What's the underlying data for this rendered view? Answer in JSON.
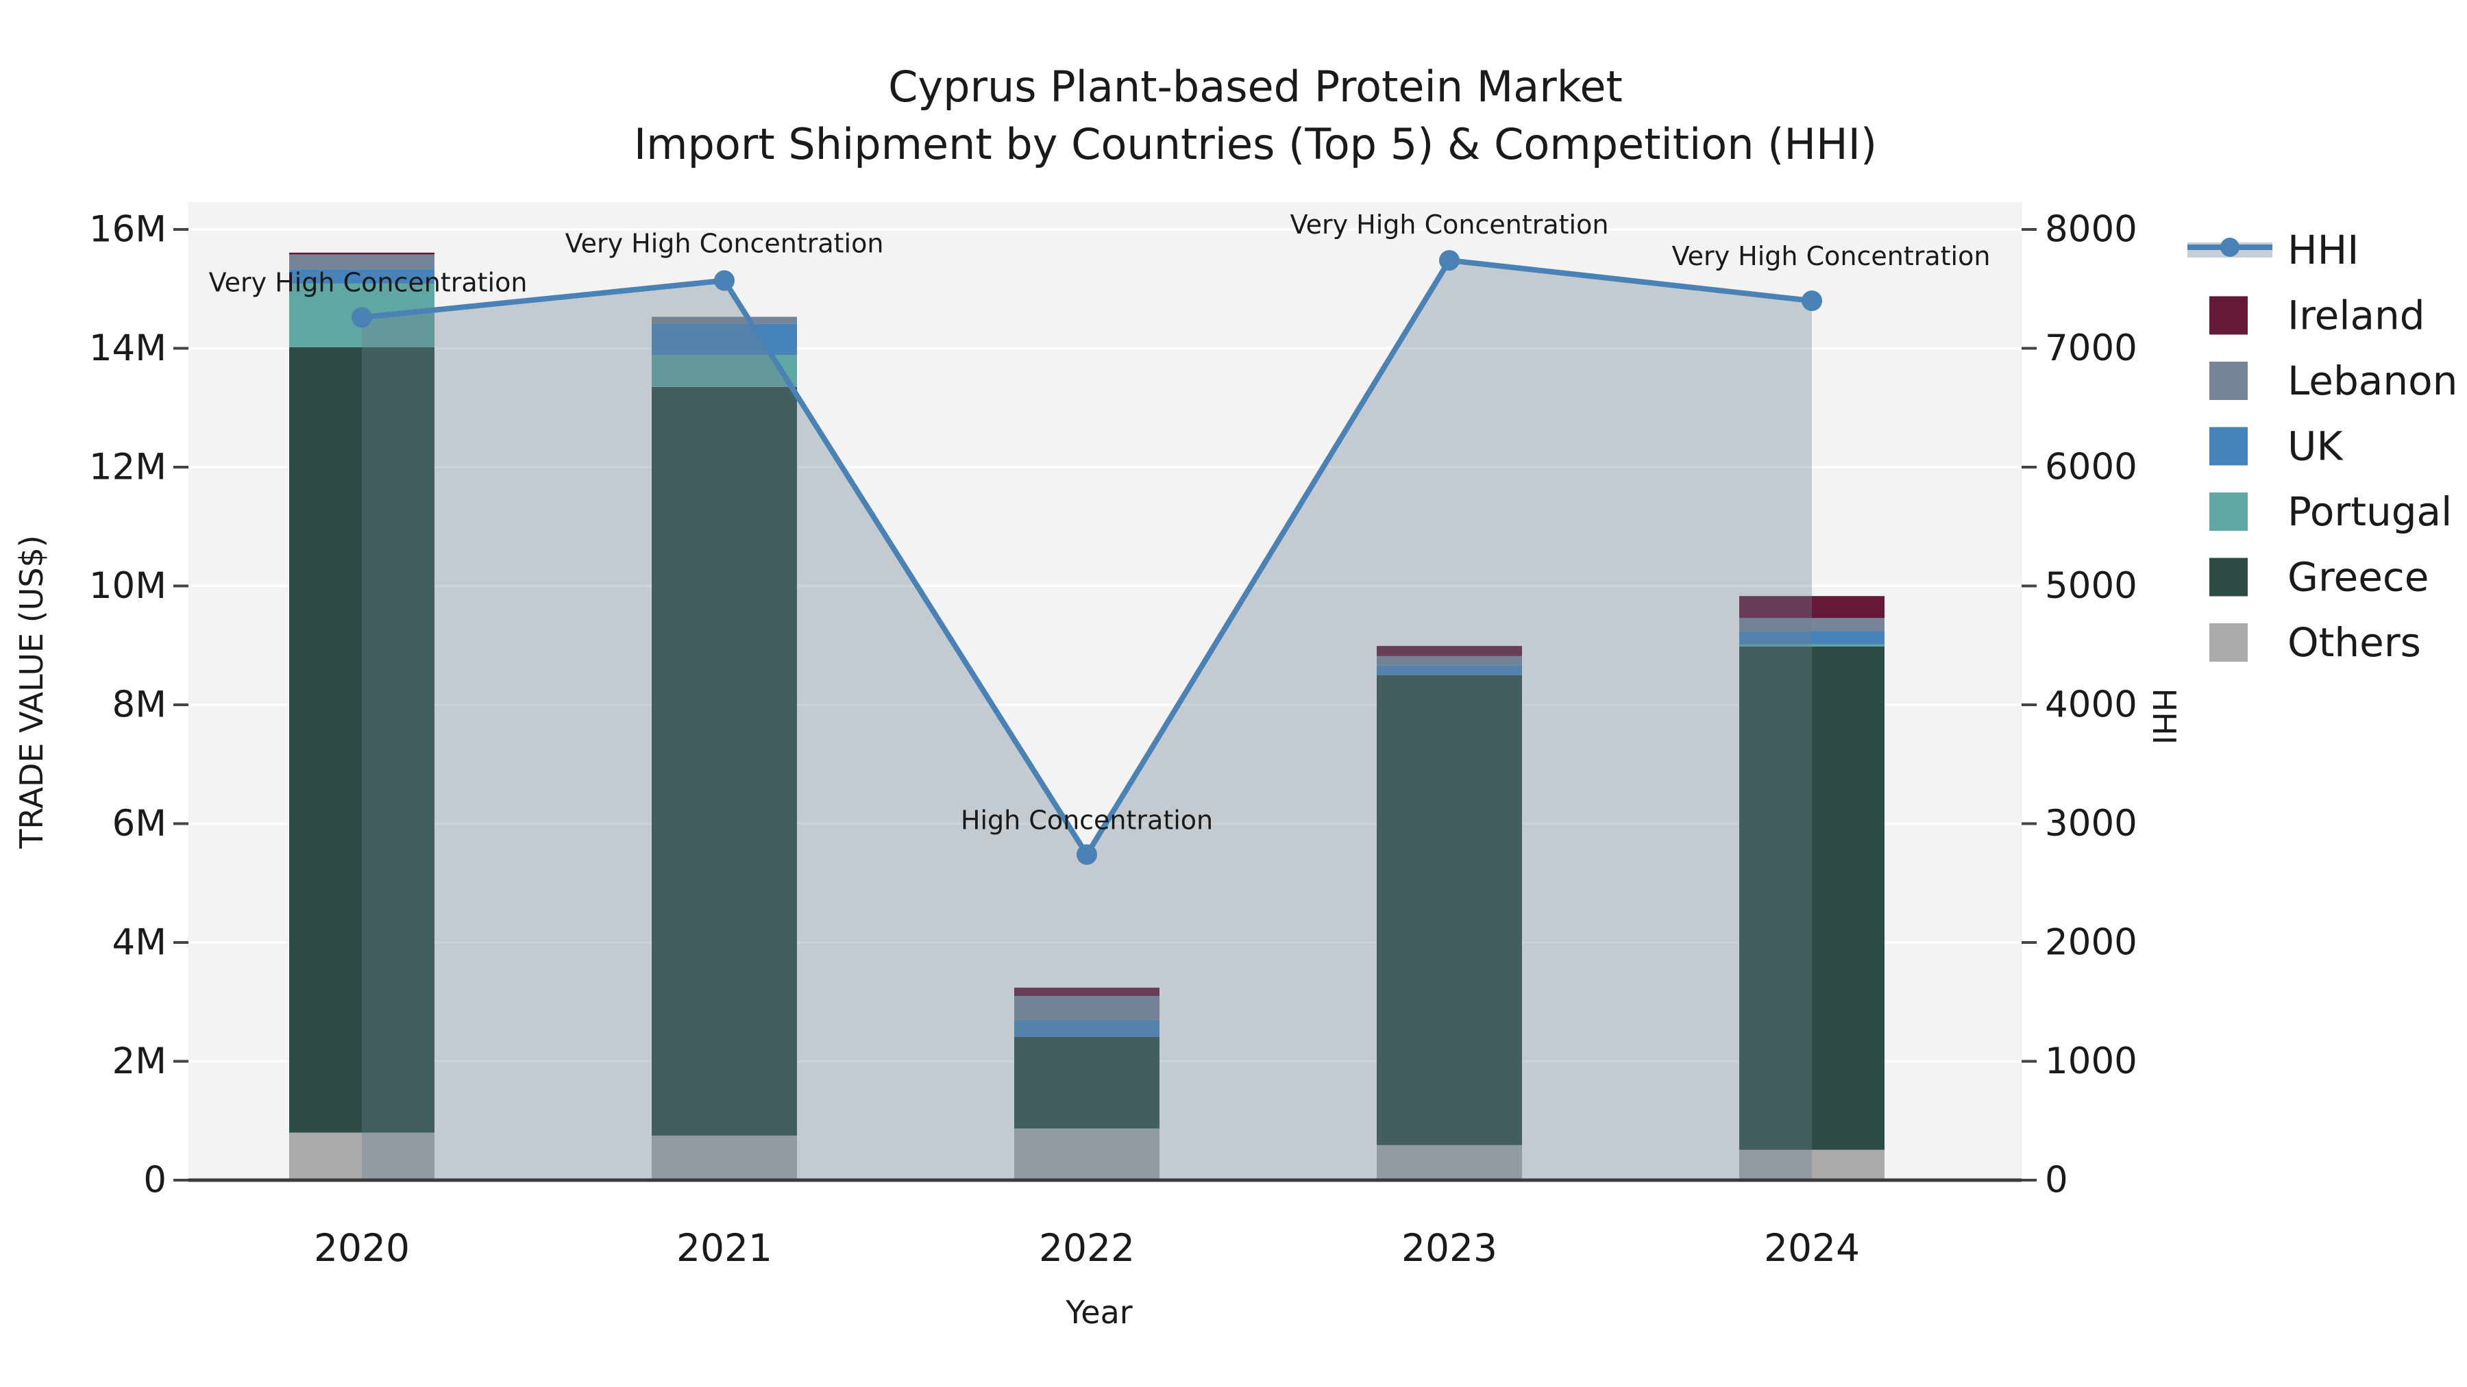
{
  "title": {
    "line1": "Cyprus Plant-based Protein Market",
    "line2": "Import Shipment by Countries (Top 5) & Competition (HHI)"
  },
  "axes": {
    "x_label": "Year",
    "y_left_label": "TRADE VALUE (US$)",
    "y_right_label": "HHI",
    "x_ticks": [
      "2020",
      "2021",
      "2022",
      "2023",
      "2024"
    ],
    "y_left_ticks": [
      "0",
      "2M",
      "4M",
      "6M",
      "8M",
      "10M",
      "12M",
      "14M",
      "16M"
    ],
    "y_left_tick_values": [
      0,
      2000000,
      4000000,
      6000000,
      8000000,
      10000000,
      12000000,
      14000000,
      16000000
    ],
    "y_right_ticks": [
      "0",
      "1000",
      "2000",
      "3000",
      "4000",
      "5000",
      "6000",
      "7000",
      "8000"
    ],
    "y_right_tick_values": [
      0,
      1000,
      2000,
      3000,
      4000,
      5000,
      6000,
      7000,
      8000
    ],
    "y_left_max": 16000000,
    "y_right_max": 8000
  },
  "colors": {
    "figure_bg": "#ffffff",
    "plot_bg": "#f3f3f3",
    "gridline": "#ffffff",
    "spine": "#3b3b3b",
    "tick_mark": "#444444",
    "hhi_line": "#4a82b6",
    "hhi_area": "rgba(109,130,142,0.35)",
    "hhi_band_sample": "#c7ced9",
    "ireland": "#651939",
    "lebanon": "#76859a",
    "uk": "#4583ba",
    "portugal": "#60a6a2",
    "greece": "#2d4c46",
    "others": "#aaaaaa"
  },
  "legend": {
    "items": [
      {
        "label": "HHI",
        "type": "line",
        "color": "#4a82b6"
      },
      {
        "label": "Ireland",
        "type": "patch",
        "color": "#651939"
      },
      {
        "label": "Lebanon",
        "type": "patch",
        "color": "#76859a"
      },
      {
        "label": "UK",
        "type": "patch",
        "color": "#4583ba"
      },
      {
        "label": "Portugal",
        "type": "patch",
        "color": "#60a6a2"
      },
      {
        "label": "Greece",
        "type": "patch",
        "color": "#2d4c46"
      },
      {
        "label": "Others",
        "type": "patch",
        "color": "#aaaaaa"
      }
    ]
  },
  "chart_data": {
    "type": "bar+line",
    "title": "Cyprus Plant-based Protein Market — Import Shipment by Countries (Top 5) & Competition (HHI)",
    "xlabel": "Year",
    "ylabel_left": "TRADE VALUE (US$)",
    "ylabel_right": "HHI",
    "ylim_left": [
      0,
      16000000
    ],
    "ylim_right": [
      0,
      8000
    ],
    "grid": true,
    "legend_position": "right",
    "categories": [
      "2020",
      "2021",
      "2022",
      "2023",
      "2024"
    ],
    "series": [
      {
        "name": "Others",
        "color": "#aaaaaa",
        "values": [
          800000,
          750000,
          870000,
          590000,
          510000
        ]
      },
      {
        "name": "Greece",
        "color": "#2d4c46",
        "values": [
          13220000,
          12600000,
          1540000,
          7910000,
          8470000
        ]
      },
      {
        "name": "Portugal",
        "color": "#60a6a2",
        "values": [
          1070000,
          540000,
          0,
          0,
          40000
        ]
      },
      {
        "name": "UK",
        "color": "#4583ba",
        "values": [
          240000,
          520000,
          290000,
          160000,
          220000
        ]
      },
      {
        "name": "Lebanon",
        "color": "#76859a",
        "values": [
          250000,
          120000,
          400000,
          160000,
          220000
        ]
      },
      {
        "name": "Ireland",
        "color": "#651939",
        "values": [
          30000,
          0,
          140000,
          170000,
          370000
        ]
      }
    ],
    "bar_totals": [
      15610000,
      14530000,
      3240000,
      8990000,
      9830000
    ],
    "hhi_line": {
      "name": "HHI",
      "color": "#4a82b6",
      "values": [
        7260,
        7570,
        2740,
        7740,
        7400
      ]
    },
    "annotations": [
      {
        "year": "2020",
        "text": "Very High Concentration"
      },
      {
        "year": "2021",
        "text": "Very High Concentration"
      },
      {
        "year": "2022",
        "text": "High Concentration"
      },
      {
        "year": "2023",
        "text": "Very High Concentration"
      },
      {
        "year": "2024",
        "text": "Very High Concentration"
      }
    ]
  }
}
